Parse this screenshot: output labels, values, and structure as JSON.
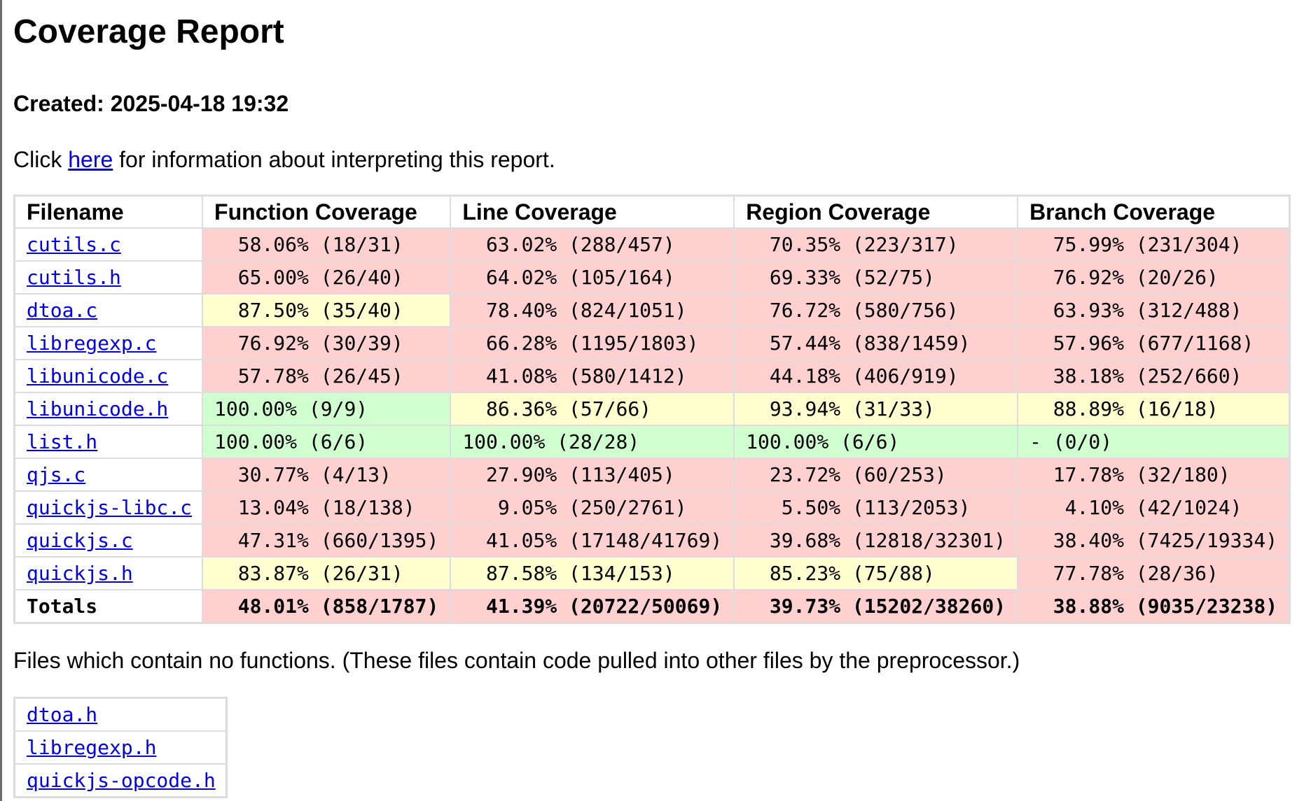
{
  "title": "Coverage Report",
  "created": "Created: 2025-04-18 19:32",
  "info": {
    "prefix": "Click ",
    "link": "here",
    "suffix": " for information about interpreting this report."
  },
  "colors": {
    "red": "#ffd0d0",
    "yellow": "#ffffd0",
    "green": "#d0ffd0",
    "link": "#0000ee"
  },
  "table": {
    "headers": [
      "Filename",
      "Function Coverage",
      "Line Coverage",
      "Region Coverage",
      "Branch Coverage"
    ],
    "rows": [
      {
        "file": "cutils.c",
        "cells": [
          {
            "text": "  58.06% (18/31)",
            "status": "red"
          },
          {
            "text": "  63.02% (288/457)",
            "status": "red"
          },
          {
            "text": "  70.35% (223/317)",
            "status": "red"
          },
          {
            "text": "  75.99% (231/304)",
            "status": "red"
          }
        ]
      },
      {
        "file": "cutils.h",
        "cells": [
          {
            "text": "  65.00% (26/40)",
            "status": "red"
          },
          {
            "text": "  64.02% (105/164)",
            "status": "red"
          },
          {
            "text": "  69.33% (52/75)",
            "status": "red"
          },
          {
            "text": "  76.92% (20/26)",
            "status": "red"
          }
        ]
      },
      {
        "file": "dtoa.c",
        "cells": [
          {
            "text": "  87.50% (35/40)",
            "status": "yellow"
          },
          {
            "text": "  78.40% (824/1051)",
            "status": "red"
          },
          {
            "text": "  76.72% (580/756)",
            "status": "red"
          },
          {
            "text": "  63.93% (312/488)",
            "status": "red"
          }
        ]
      },
      {
        "file": "libregexp.c",
        "cells": [
          {
            "text": "  76.92% (30/39)",
            "status": "red"
          },
          {
            "text": "  66.28% (1195/1803)",
            "status": "red"
          },
          {
            "text": "  57.44% (838/1459)",
            "status": "red"
          },
          {
            "text": "  57.96% (677/1168)",
            "status": "red"
          }
        ]
      },
      {
        "file": "libunicode.c",
        "cells": [
          {
            "text": "  57.78% (26/45)",
            "status": "red"
          },
          {
            "text": "  41.08% (580/1412)",
            "status": "red"
          },
          {
            "text": "  44.18% (406/919)",
            "status": "red"
          },
          {
            "text": "  38.18% (252/660)",
            "status": "red"
          }
        ]
      },
      {
        "file": "libunicode.h",
        "cells": [
          {
            "text": "100.00% (9/9)",
            "status": "green"
          },
          {
            "text": "  86.36% (57/66)",
            "status": "yellow"
          },
          {
            "text": "  93.94% (31/33)",
            "status": "yellow"
          },
          {
            "text": "  88.89% (16/18)",
            "status": "yellow"
          }
        ]
      },
      {
        "file": "list.h",
        "cells": [
          {
            "text": "100.00% (6/6)",
            "status": "green"
          },
          {
            "text": "100.00% (28/28)",
            "status": "green"
          },
          {
            "text": "100.00% (6/6)",
            "status": "green"
          },
          {
            "text": "- (0/0)",
            "status": "green"
          }
        ]
      },
      {
        "file": "qjs.c",
        "cells": [
          {
            "text": "  30.77% (4/13)",
            "status": "red"
          },
          {
            "text": "  27.90% (113/405)",
            "status": "red"
          },
          {
            "text": "  23.72% (60/253)",
            "status": "red"
          },
          {
            "text": "  17.78% (32/180)",
            "status": "red"
          }
        ]
      },
      {
        "file": "quickjs-libc.c",
        "cells": [
          {
            "text": "  13.04% (18/138)",
            "status": "red"
          },
          {
            "text": "   9.05% (250/2761)",
            "status": "red"
          },
          {
            "text": "   5.50% (113/2053)",
            "status": "red"
          },
          {
            "text": "   4.10% (42/1024)",
            "status": "red"
          }
        ]
      },
      {
        "file": "quickjs.c",
        "cells": [
          {
            "text": "  47.31% (660/1395)",
            "status": "red"
          },
          {
            "text": "  41.05% (17148/41769)",
            "status": "red"
          },
          {
            "text": "  39.68% (12818/32301)",
            "status": "red"
          },
          {
            "text": "  38.40% (7425/19334)",
            "status": "red"
          }
        ]
      },
      {
        "file": "quickjs.h",
        "cells": [
          {
            "text": "  83.87% (26/31)",
            "status": "yellow"
          },
          {
            "text": "  87.58% (134/153)",
            "status": "yellow"
          },
          {
            "text": "  85.23% (75/88)",
            "status": "yellow"
          },
          {
            "text": "  77.78% (28/36)",
            "status": "red"
          }
        ]
      }
    ],
    "totals": {
      "label": "Totals",
      "cells": [
        {
          "text": "  48.01% (858/1787)",
          "status": "red"
        },
        {
          "text": "  41.39% (20722/50069)",
          "status": "red"
        },
        {
          "text": "  39.73% (15202/38260)",
          "status": "red"
        },
        {
          "text": "  38.88% (9035/23238)",
          "status": "red"
        }
      ]
    }
  },
  "no_functions_note": "Files which contain no functions. (These files contain code pulled into other files by the preprocessor.)",
  "no_functions_files": [
    "dtoa.h",
    "libregexp.h",
    "quickjs-opcode.h"
  ]
}
